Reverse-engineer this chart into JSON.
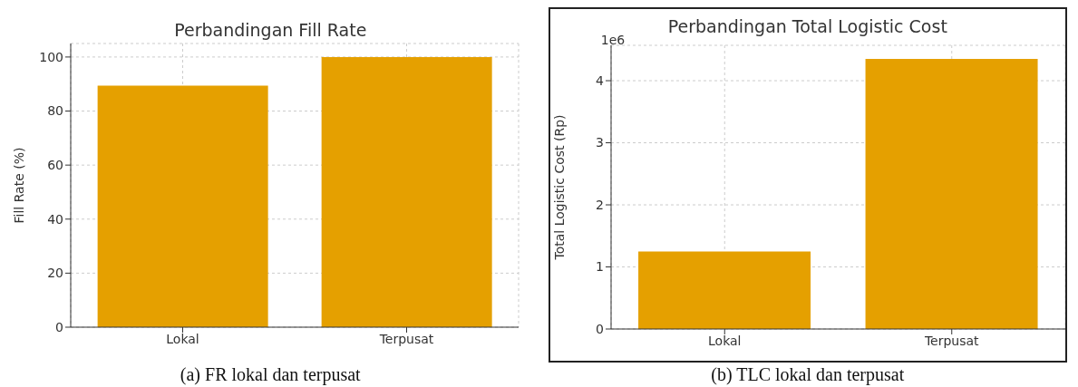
{
  "chart_data": [
    {
      "type": "bar",
      "title": "Perbandingan Fill Rate",
      "ylabel": "Fill Rate (%)",
      "categories": [
        "Lokal",
        "Terpusat"
      ],
      "values": [
        89.4,
        100
      ],
      "color": "#e5a000",
      "ylim": [
        0,
        105
      ],
      "yticks": [
        0,
        20,
        40,
        60,
        80,
        100
      ],
      "grid": true,
      "annotations": [
        "(a)  FR lokal dan terpusat"
      ]
    },
    {
      "type": "bar",
      "title": "Perbandingan Total Logistic Cost",
      "ylabel": "Total Logistic Cost (Rp)",
      "categories": [
        "Lokal",
        "Terpusat"
      ],
      "values": [
        1.25,
        4.35
      ],
      "color": "#e5a000",
      "ylim": [
        0,
        4.57
      ],
      "yticks": [
        0,
        1,
        2,
        3,
        4
      ],
      "grid": true,
      "annotations": [
        "1e6",
        "(b)  TLC lokal dan terpusat"
      ]
    }
  ]
}
